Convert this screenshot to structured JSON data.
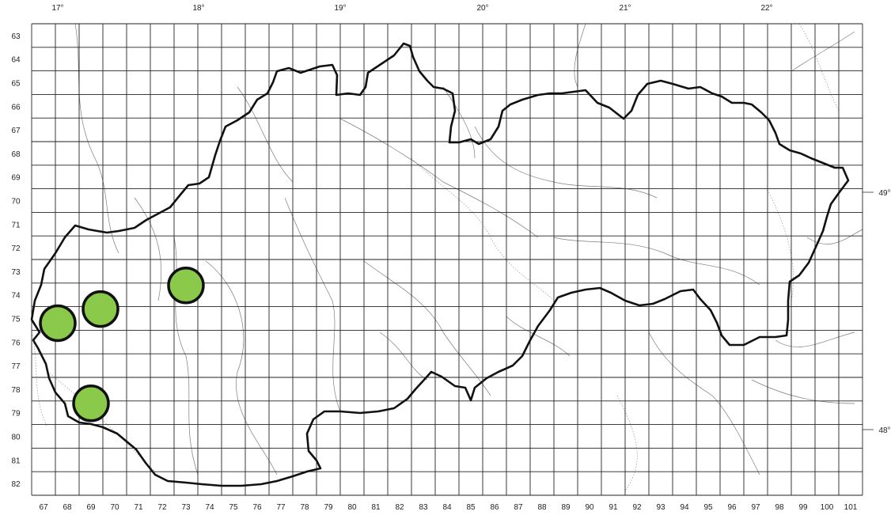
{
  "map": {
    "longitude_labels": [
      "17°",
      "18°",
      "19°",
      "20°",
      "21°",
      "22°"
    ],
    "latitude_labels": [
      "49°",
      "48°"
    ],
    "grid_columns": [
      67,
      68,
      69,
      70,
      71,
      72,
      73,
      74,
      75,
      76,
      77,
      78,
      79,
      80,
      81,
      82,
      83,
      84,
      85,
      86,
      87,
      88,
      89,
      90,
      91,
      92,
      93,
      94,
      95,
      96,
      97,
      98,
      99,
      100,
      101
    ],
    "grid_rows": [
      63,
      64,
      65,
      66,
      67,
      68,
      69,
      70,
      71,
      72,
      73,
      74,
      75,
      76,
      77,
      78,
      79,
      80,
      81,
      82
    ],
    "marker_color": "#8bc94a",
    "occurrences": [
      {
        "col": 73,
        "row": 73.6
      },
      {
        "col": 69.4,
        "row": 74.6
      },
      {
        "col": 67.6,
        "row": 75.2
      },
      {
        "col": 69,
        "row": 78.6
      }
    ]
  }
}
